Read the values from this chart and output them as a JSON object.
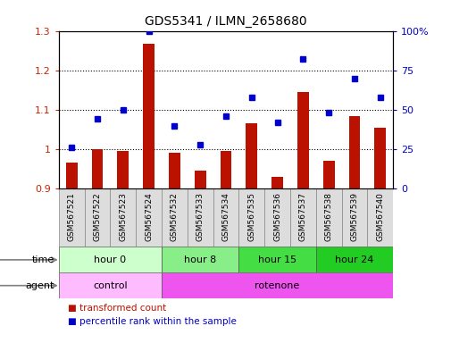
{
  "title": "GDS5341 / ILMN_2658680",
  "samples": [
    "GSM567521",
    "GSM567522",
    "GSM567523",
    "GSM567524",
    "GSM567532",
    "GSM567533",
    "GSM567534",
    "GSM567535",
    "GSM567536",
    "GSM567537",
    "GSM567538",
    "GSM567539",
    "GSM567540"
  ],
  "transformed_count": [
    0.965,
    1.001,
    0.995,
    1.268,
    0.99,
    0.945,
    0.995,
    1.065,
    0.93,
    1.145,
    0.97,
    1.085,
    1.055
  ],
  "percentile_rank": [
    26,
    44,
    50,
    100,
    40,
    28,
    46,
    58,
    42,
    82,
    48,
    70,
    58
  ],
  "ylim_left": [
    0.9,
    1.3
  ],
  "ylim_right": [
    0,
    100
  ],
  "yticks_left": [
    0.9,
    1.0,
    1.1,
    1.2,
    1.3
  ],
  "yticks_right": [
    0,
    25,
    50,
    75,
    100
  ],
  "ytick_labels_left": [
    "0.9",
    "1",
    "1.1",
    "1.2",
    "1.3"
  ],
  "ytick_labels_right": [
    "0",
    "25",
    "50",
    "75",
    "100%"
  ],
  "bar_color": "#bb1100",
  "dot_color": "#0000cc",
  "grid_color": "#000000",
  "time_groups": [
    {
      "label": "hour 0",
      "start": 0,
      "end": 4,
      "color": "#ccffcc"
    },
    {
      "label": "hour 8",
      "start": 4,
      "end": 7,
      "color": "#88ee88"
    },
    {
      "label": "hour 15",
      "start": 7,
      "end": 10,
      "color": "#44dd44"
    },
    {
      "label": "hour 24",
      "start": 10,
      "end": 13,
      "color": "#22cc22"
    }
  ],
  "agent_groups": [
    {
      "label": "control",
      "start": 0,
      "end": 4,
      "color": "#ffbbff"
    },
    {
      "label": "rotenone",
      "start": 4,
      "end": 13,
      "color": "#ee55ee"
    }
  ],
  "legend_bar_label": "transformed count",
  "legend_dot_label": "percentile rank within the sample",
  "time_label": "time",
  "agent_label": "agent",
  "sample_bg": "#dddddd",
  "sample_edge": "#888888"
}
